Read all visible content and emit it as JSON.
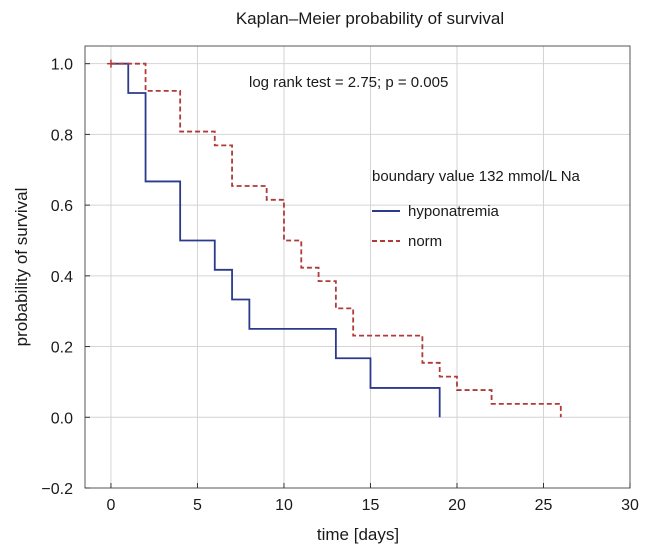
{
  "chart_data": {
    "type": "line",
    "title": "Kaplan–Meier probability of survival",
    "xlabel": "time [days]",
    "ylabel": "probability of survival",
    "xlim": [
      -1.5,
      30
    ],
    "ylim": [
      -0.2,
      1.05
    ],
    "x_ticks": [
      0,
      5,
      10,
      15,
      20,
      25,
      30
    ],
    "y_ticks": [
      -0.2,
      0.0,
      0.2,
      0.4,
      0.6,
      0.8,
      1.0
    ],
    "x_tick_labels": [
      "0",
      "5",
      "10",
      "15",
      "20",
      "25",
      "30"
    ],
    "y_tick_labels": [
      "−0.2",
      "0.0",
      "0.2",
      "0.4",
      "0.6",
      "0.8",
      "1.0"
    ],
    "grid": true,
    "legend_title": "boundary value 132 mmol/L Na",
    "legend_position": "right",
    "annotation": "log rank test = 2.75; p = 0.005",
    "series": [
      {
        "name": "hyponatremia",
        "color": "#2b3a8c",
        "style": "solid",
        "step_times": [
          0,
          1,
          2,
          4,
          6,
          7,
          8,
          13,
          15,
          19
        ],
        "survival": [
          1.0,
          0.917,
          0.667,
          0.5,
          0.417,
          0.333,
          0.25,
          0.167,
          0.083,
          0.0
        ],
        "end_time": 19
      },
      {
        "name": "norm",
        "color": "#b03a3a",
        "style": "dashed",
        "step_times": [
          0,
          2,
          4,
          6,
          7,
          9,
          10,
          11,
          12,
          13,
          14,
          18,
          19,
          20,
          22,
          26
        ],
        "survival": [
          1.0,
          0.923,
          0.808,
          0.769,
          0.654,
          0.615,
          0.5,
          0.423,
          0.385,
          0.308,
          0.231,
          0.154,
          0.115,
          0.077,
          0.038,
          0.0
        ],
        "end_time": 26
      }
    ]
  }
}
